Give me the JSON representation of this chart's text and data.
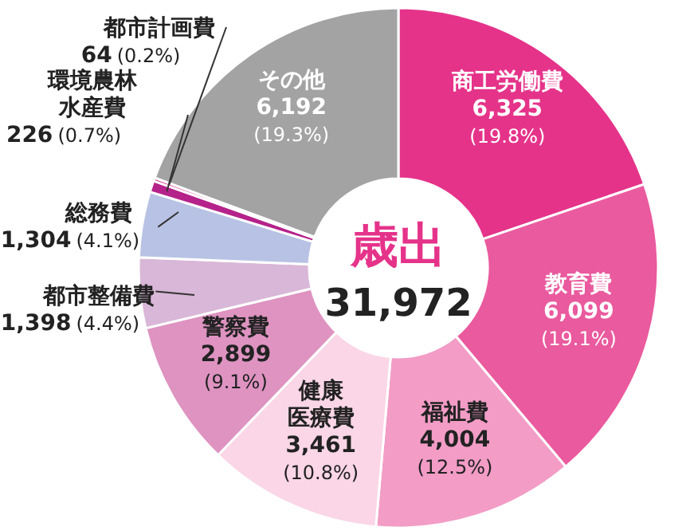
{
  "chart_data": {
    "type": "donut",
    "title": "歳出",
    "annotations": [
      "31,972"
    ],
    "categories": [
      "商工労働費",
      "教育費",
      "福祉費",
      "健康医療費",
      "警察費",
      "都市整備費",
      "総務費",
      "環境農林水産費",
      "都市計画費",
      "その他"
    ],
    "values": [
      6325,
      6099,
      4004,
      3461,
      2899,
      1398,
      1304,
      226,
      64,
      6192
    ],
    "value_labels": [
      "6,325 (19.8%)",
      "6,099 (19.1%)",
      "4,004 (12.5%)",
      "3,461 (10.8%)",
      "2,899 (9.1%)",
      "1,398 (4.4%)",
      "1,304 (4.1%)",
      "226 (0.7%)",
      "64 (0.2%)",
      "6,192 (19.3%)"
    ],
    "colors": [
      "#e5338a",
      "#ea5a9e",
      "#f29cc6",
      "#fad6e6",
      "#de93c1",
      "#d9b7d8",
      "#b8c2e4",
      "#b5238a",
      "#d6117e",
      "#a3a3a3"
    ]
  }
}
